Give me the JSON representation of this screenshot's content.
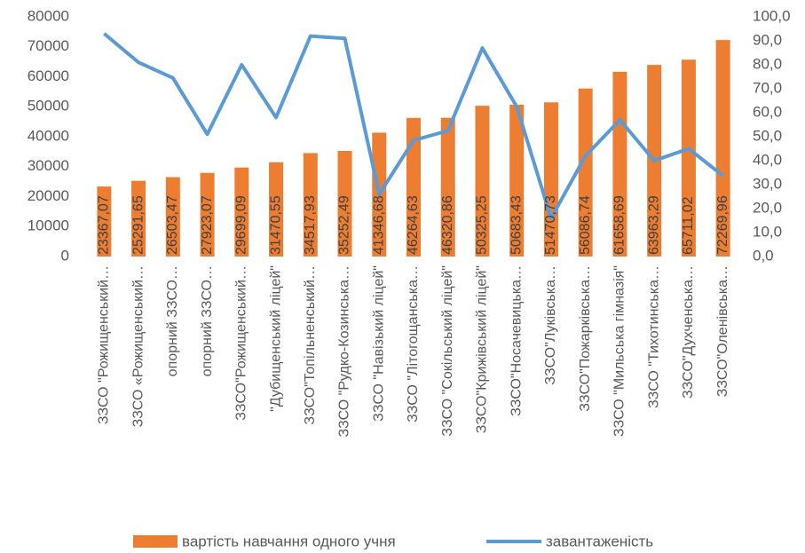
{
  "chart_data": {
    "type": "bar-line",
    "categories": [
      "ЗЗСО \"Рожищенський…",
      "ЗЗСО «Рожищенський…",
      "опорний ЗЗСО…",
      "опорний ЗЗСО…",
      "ЗЗСО\"Рожищенський…",
      "\"Дубищенський ліцей\"",
      "ЗЗСО\"Топільненський…",
      "ЗЗСО \"Рудко-Козинська…",
      "ЗЗСО \"Навізький ліцей\"",
      "ЗЗСО \"Літогощанська…",
      "ЗЗСО \"Сокільський ліцей\"",
      "ЗЗСО\"Крижівський ліцей\"",
      "ЗЗСО\"Носачевицька…",
      "ЗЗСО\"Луківська…",
      "ЗЗСО\"Пожарківська…",
      "ЗЗСО \"Мильська гімназія\"",
      "ЗЗСО \"Тихотинська…",
      "ЗЗСО\"Духченська…",
      "ЗЗСО\"Оленівська…"
    ],
    "series": [
      {
        "name": "вартість навчання одного учня",
        "color": "#ed7d31",
        "kind": "bar",
        "values": [
          23367.07,
          25291.65,
          26503.47,
          27923.07,
          29699.09,
          31470.55,
          34517.93,
          35252.49,
          41346.68,
          46264.63,
          46320.86,
          50325.25,
          50683.43,
          51470.73,
          56086.74,
          61658.69,
          63963.29,
          65711.02,
          72269.96
        ],
        "value_labels": [
          "23367,07",
          "25291,65",
          "26503,47",
          "27923,07",
          "29699,09",
          "31470,55",
          "34517,93",
          "35252,49",
          "41346,68",
          "46264,63",
          "46320,86",
          "50325,25",
          "50683,43",
          "51470,73",
          "56086,74",
          "61658,69",
          "63963,29",
          "65711,02",
          "72269,96"
        ]
      },
      {
        "name": "завантаженість",
        "color": "#5b9bd5",
        "kind": "line",
        "axis": "y2",
        "values": [
          93,
          81,
          74.5,
          51,
          80,
          58,
          92,
          91,
          26,
          48.5,
          52.5,
          87,
          62.5,
          16,
          42,
          57,
          40,
          45,
          33.7
        ]
      }
    ],
    "ylim": [
      0,
      80000
    ],
    "yticks": [
      0,
      10000,
      20000,
      30000,
      40000,
      50000,
      60000,
      70000,
      80000
    ],
    "y2lim": [
      0,
      100
    ],
    "y2ticks": [
      {
        "value": 0,
        "label": "0,0"
      },
      {
        "value": 10,
        "label": "10,0"
      },
      {
        "value": 20,
        "label": "20,0"
      },
      {
        "value": 30,
        "label": "30,0"
      },
      {
        "value": 40,
        "label": "40,0"
      },
      {
        "value": 50,
        "label": "50,0"
      },
      {
        "value": 60,
        "label": "60,0"
      },
      {
        "value": 70,
        "label": "70,0"
      },
      {
        "value": 80,
        "label": "80,0"
      },
      {
        "value": 90,
        "label": "90,0"
      },
      {
        "value": 100,
        "label": "100,0"
      }
    ],
    "legend": "bottom"
  }
}
